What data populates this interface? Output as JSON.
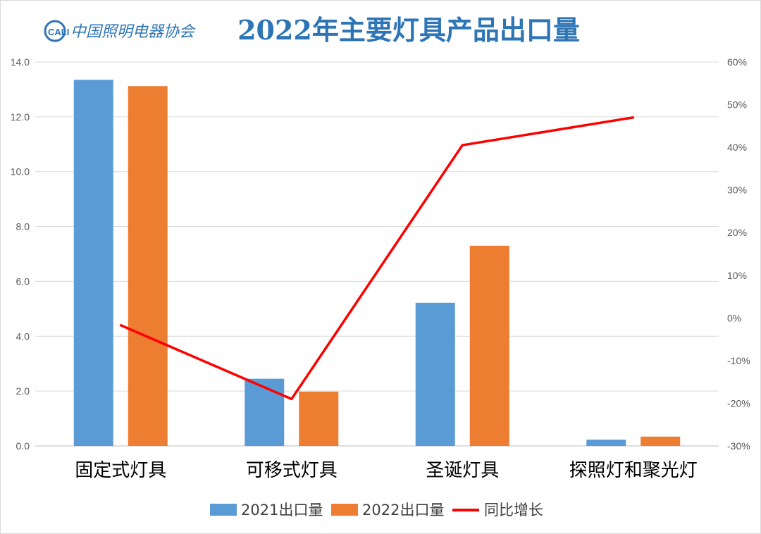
{
  "header": {
    "logo_mark": "CALI",
    "logo_name": "中国照明电器协会"
  },
  "chart_data": {
    "type": "bar",
    "title": "2022年主要灯具产品出口量",
    "categories": [
      "固定式灯具",
      "可移式灯具",
      "圣诞灯具",
      "探照灯和聚光灯"
    ],
    "series": [
      {
        "name": "2021出口量",
        "type": "bar",
        "axis": "left",
        "color": "#5b9bd5",
        "values": [
          13.35,
          2.45,
          5.22,
          0.23
        ]
      },
      {
        "name": "2022出口量",
        "type": "bar",
        "axis": "left",
        "color": "#ed7d31",
        "values": [
          13.12,
          1.98,
          7.3,
          0.34
        ]
      },
      {
        "name": "同比增长",
        "type": "line",
        "axis": "right",
        "color": "#ff0000",
        "values": [
          -0.017,
          -0.19,
          0.405,
          0.47
        ]
      }
    ],
    "y_left": {
      "min": 0,
      "max": 14,
      "ticks": [
        "0.0",
        "2.0",
        "4.0",
        "6.0",
        "8.0",
        "10.0",
        "12.0",
        "14.0"
      ]
    },
    "y_right": {
      "min": -0.3,
      "max": 0.6,
      "ticks": [
        "-30%",
        "-20%",
        "-10%",
        "0%",
        "10%",
        "20%",
        "30%",
        "40%",
        "50%",
        "60%"
      ]
    },
    "grid": true,
    "legend": "bottom"
  }
}
